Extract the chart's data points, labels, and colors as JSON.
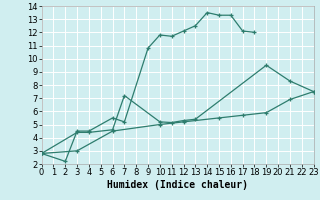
{
  "curve1_x": [
    0,
    2,
    3,
    4,
    6,
    7,
    9,
    10,
    11,
    12,
    13,
    14,
    15,
    16,
    17,
    18
  ],
  "curve1_y": [
    2.8,
    2.2,
    4.5,
    4.5,
    5.5,
    5.2,
    10.8,
    11.8,
    11.7,
    12.1,
    12.5,
    13.5,
    13.3,
    13.3,
    12.1,
    12.0
  ],
  "curve2_x": [
    0,
    3,
    4,
    6,
    7,
    10,
    11,
    12,
    13,
    19,
    21,
    23
  ],
  "curve2_y": [
    2.8,
    4.4,
    4.4,
    4.6,
    7.2,
    5.2,
    5.15,
    5.3,
    5.4,
    9.5,
    8.3,
    7.5
  ],
  "curve3_x": [
    0,
    3,
    6,
    10,
    12,
    15,
    17,
    19,
    21,
    23
  ],
  "curve3_y": [
    2.8,
    3.0,
    4.5,
    5.0,
    5.2,
    5.5,
    5.7,
    5.9,
    6.9,
    7.5
  ],
  "line_color": "#2e7d6e",
  "bg_color": "#d0eef0",
  "grid_color": "#ffffff",
  "xlabel": "Humidex (Indice chaleur)",
  "xlim": [
    0,
    23
  ],
  "ylim": [
    2,
    14
  ],
  "xticks": [
    0,
    1,
    2,
    3,
    4,
    5,
    6,
    7,
    8,
    9,
    10,
    11,
    12,
    13,
    14,
    15,
    16,
    17,
    18,
    19,
    20,
    21,
    22,
    23
  ],
  "yticks": [
    2,
    3,
    4,
    5,
    6,
    7,
    8,
    9,
    10,
    11,
    12,
    13,
    14
  ],
  "xlabel_fontsize": 7,
  "tick_fontsize": 6
}
